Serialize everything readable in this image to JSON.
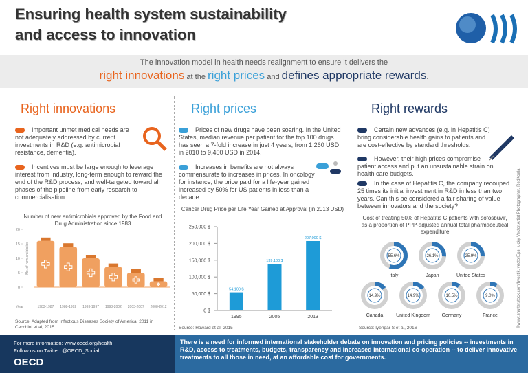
{
  "header": {
    "title_lines": [
      "Ensuring health system sustainability",
      "and access to innovation"
    ]
  },
  "intro": {
    "line1": "The innovation model in health needs realignment to ensure it delivers the",
    "parts": [
      "right innovations",
      "at the",
      "right prices",
      "and",
      "defines appropriate rewards",
      "."
    ]
  },
  "sections": [
    {
      "title": "Right innovations",
      "items": [
        "Important unmet medical needs are not adequately addressed by current investments in R&D (e.g. antimicrobial resistance, dementia).",
        "Incentives must be large enough to leverage interest from industry, long-term enough to reward the end of the R&D process, and well-targeted toward all phases of the pipeline from early research to commercialisation."
      ],
      "chart": {
        "type": "pictogram",
        "title": "Number of new antimicrobials approved by the Food and Drug Administration since 1983",
        "y_label": "No. of new antibiotics",
        "x_label": "Year",
        "categories": [
          "1983-1987",
          "1988-1992",
          "1993-1997",
          "1998-2002",
          "2003-2007",
          "2008-2012"
        ],
        "values": [
          16,
          14,
          10,
          7,
          5,
          2
        ],
        "color": "#f0a060",
        "ylim": [
          0,
          20
        ],
        "yticks": [
          0,
          5,
          10,
          15,
          20
        ]
      },
      "source": "Source: Adapted from Infectious Diseases Society of America, 2011 in Cecchini et al, 2015"
    },
    {
      "title": "Right prices",
      "items": [
        "Prices of new drugs have been soaring. In the United States, median revenue per patient for the top 100 drugs has seen a 7-fold increase in just 4 years, from 1,260 USD in 2010 to 9,400 USD in 2014.",
        "Increases in benefits are not always commensurate to increases in prices. In oncology for instance, the price paid for a life-year gained increased by 50% for US patients in less than a decade."
      ],
      "chart": {
        "type": "bar",
        "title": "Cancer Drug Price per Life Year Gained at Approval (in 2013 USD)",
        "categories": [
          "1995",
          "2005",
          "2013"
        ],
        "values": [
          54100,
          139100,
          207000
        ],
        "value_labels": [
          "54,100 $",
          "139,100 $",
          "207,000 $"
        ],
        "color": "#1e9bd7",
        "ylim": [
          0,
          250000
        ],
        "yticks": [
          {
            "value": 0,
            "label": "0 $"
          },
          {
            "value": 50000,
            "label": "50,000 $"
          },
          {
            "value": 100000,
            "label": "100,000 $"
          },
          {
            "value": 150000,
            "label": "150,000 $"
          },
          {
            "value": 200000,
            "label": "200,000 $"
          },
          {
            "value": 250000,
            "label": "250,000 $"
          }
        ]
      },
      "source": "Source: Howard et al, 2015"
    },
    {
      "title": "Right rewards",
      "items": [
        "Certain new advances (e.g. in Hepatitis C) bring considerable health gains to patients and are cost-effective by standard thresholds.",
        "However, their high prices compromise patient access and put an unsustainable strain on health care budgets.",
        "In the case of Hepatitis C, the company recouped 25 times its initial investment in R&D in less than two years. Can this be considered a fair sharing of value between innovators and the society?"
      ],
      "chart": {
        "type": "donut",
        "title": "Cost of treating 50% of Hepatitis C patients with sofosbuvir, as a proportion of PPP-adjusted annual total pharmaceutical expenditure",
        "categories": [
          "Italy",
          "Japan",
          "United States",
          "Canada",
          "United Kingdom",
          "Germany",
          "France"
        ],
        "values": [
          55.6,
          26.1,
          25.9,
          14.9,
          14.9,
          10.5,
          9.0
        ],
        "value_labels": [
          "55.6%",
          "26.1%",
          "25.9%",
          "14.9%",
          "14.9%",
          "10.5%",
          "9.0%"
        ],
        "color": "#2e75b6"
      },
      "source": "Source: Iyengar S et al, 2016"
    }
  ],
  "credit": "©www.shutterstock.com/hvostik, vectorEps, lucky Vector Artist Photographer, RedKoala",
  "footer": {
    "info": "For more information: www.oecd.org/health",
    "twitter": "Follow us on Twitter: @OECD_Social",
    "logo": "OECD",
    "message": "There is a need for informed international stakeholder debate on innovation and pricing policies -- investments in R&D, access to treatments, budgets, transparency and increased international co-operation -- to deliver innovative treatments to all those in need, at an affordable cost for governments."
  }
}
